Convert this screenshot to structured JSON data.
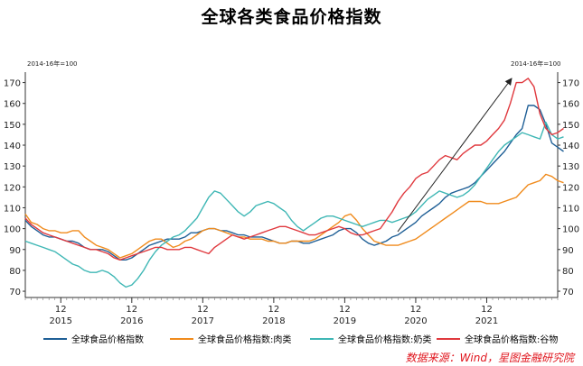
{
  "title": "全球各类食品价格指数",
  "source": "数据来源：Wind，星图金融研究院",
  "chart_data": {
    "type": "line",
    "unit_left": "2014-16年=100",
    "unit_right": "2014-16年=100",
    "ylim": [
      67,
      175
    ],
    "yticks": [
      70,
      80,
      90,
      100,
      110,
      120,
      130,
      140,
      150,
      160,
      170
    ],
    "x_start": "2014-06",
    "x_end": "2021-12",
    "x_month_ticks": [
      "12",
      "12",
      "12",
      "12",
      "12",
      "12",
      "12"
    ],
    "x_year_labels": [
      "2015",
      "2016",
      "2017",
      "2018",
      "2019",
      "2020",
      "2021"
    ],
    "grid": false,
    "legend_position": "bottom",
    "series": [
      {
        "name": "全球食品价格指数",
        "color": "#1f5f96",
        "values": [
          104,
          101,
          99,
          97,
          96,
          96,
          95,
          94,
          94,
          93,
          91,
          90,
          90,
          90,
          89,
          87,
          85,
          85,
          86,
          88,
          90,
          92,
          93,
          94,
          95,
          95,
          95,
          96,
          98,
          98,
          99,
          100,
          100,
          99,
          99,
          98,
          97,
          97,
          96,
          96,
          96,
          95,
          94,
          93,
          93,
          94,
          94,
          93,
          93,
          94,
          95,
          96,
          97,
          99,
          100,
          100,
          98,
          95,
          93,
          92,
          93,
          94,
          96,
          97,
          99,
          101,
          103,
          106,
          108,
          110,
          112,
          115,
          117,
          118,
          119,
          120,
          122,
          125,
          128,
          131,
          134,
          137,
          141,
          145,
          148,
          159,
          159,
          157,
          150,
          141,
          139,
          137
        ]
      },
      {
        "name": "全球食品价格指数:肉类",
        "color": "#f08b1d",
        "values": [
          107,
          103,
          102,
          100,
          99,
          99,
          98,
          98,
          99,
          99,
          96,
          94,
          92,
          91,
          90,
          88,
          86,
          87,
          88,
          90,
          92,
          94,
          95,
          95,
          93,
          91,
          92,
          94,
          95,
          97,
          99,
          100,
          100,
          99,
          98,
          97,
          96,
          96,
          95,
          95,
          95,
          94,
          94,
          93,
          93,
          94,
          94,
          94,
          94,
          95,
          97,
          99,
          101,
          103,
          106,
          107,
          104,
          100,
          97,
          94,
          93,
          92,
          92,
          92,
          93,
          94,
          95,
          97,
          99,
          101,
          103,
          105,
          107,
          109,
          111,
          113,
          113,
          113,
          112,
          112,
          112,
          113,
          114,
          115,
          118,
          121,
          122,
          123,
          126,
          125,
          123,
          122
        ]
      },
      {
        "name": "全球食品价格指数:奶类",
        "color": "#3fb7b5",
        "values": [
          94,
          93,
          92,
          91,
          90,
          89,
          87,
          85,
          83,
          82,
          80,
          79,
          79,
          80,
          79,
          77,
          74,
          72,
          73,
          76,
          80,
          85,
          89,
          92,
          94,
          96,
          97,
          99,
          102,
          105,
          110,
          115,
          118,
          117,
          114,
          111,
          108,
          106,
          108,
          111,
          112,
          113,
          112,
          110,
          108,
          104,
          101,
          99,
          101,
          103,
          105,
          106,
          106,
          105,
          104,
          103,
          102,
          101,
          102,
          103,
          104,
          104,
          103,
          104,
          105,
          106,
          108,
          111,
          114,
          116,
          118,
          117,
          116,
          115,
          116,
          118,
          121,
          125,
          129,
          133,
          137,
          140,
          142,
          144,
          146,
          145,
          144,
          143,
          151,
          145,
          143,
          144
        ]
      },
      {
        "name": "全球食品价格指数:谷物",
        "color": "#e0393e",
        "values": [
          105,
          102,
          100,
          98,
          97,
          96,
          95,
          94,
          93,
          92,
          91,
          90,
          90,
          89,
          88,
          86,
          85,
          86,
          87,
          88,
          89,
          90,
          91,
          91,
          90,
          90,
          90,
          91,
          91,
          90,
          89,
          88,
          91,
          93,
          95,
          97,
          96,
          95,
          96,
          97,
          98,
          99,
          100,
          101,
          101,
          100,
          99,
          98,
          97,
          97,
          98,
          99,
          100,
          101,
          100,
          98,
          97,
          97,
          98,
          99,
          100,
          104,
          108,
          113,
          117,
          120,
          124,
          126,
          127,
          130,
          133,
          135,
          134,
          133,
          136,
          138,
          140,
          140,
          142,
          145,
          148,
          152,
          160,
          170,
          170,
          172,
          168,
          155,
          148,
          145,
          146,
          148
        ]
      }
    ],
    "annotation": "arrow"
  }
}
